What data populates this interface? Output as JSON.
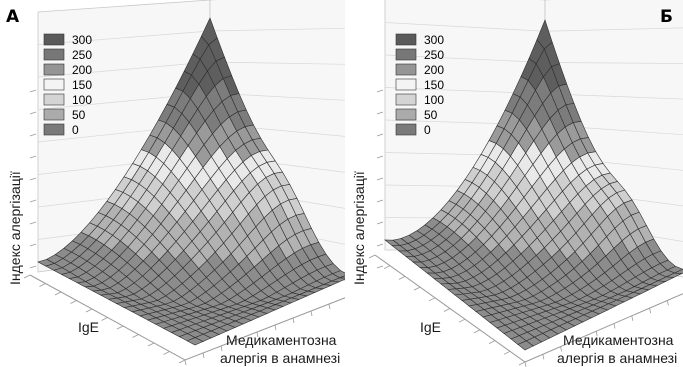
{
  "figure": {
    "panels": [
      {
        "id": "A",
        "letter": "А",
        "ylabel": "Індекс алергізації",
        "xlabel": "IgE",
        "zlabel_line1": "Медикаментозна",
        "zlabel_line2": "алергія в анамнезі",
        "legend": [
          "300",
          "250",
          "200",
          "150",
          "100",
          "50",
          "0"
        ],
        "surface_profile": "a"
      },
      {
        "id": "B",
        "letter": "Б",
        "ylabel": "Індекс алергізації",
        "xlabel": "IgE",
        "zlabel_line1": "Медикаментозна",
        "zlabel_line2": "алергія в анамнезі",
        "legend": [
          "300",
          "250",
          "200",
          "150",
          "100",
          "50",
          "0"
        ],
        "surface_profile": "b"
      }
    ],
    "legend_colors": [
      "#5a5a5a",
      "#777777",
      "#959595",
      "#f4f4f4",
      "#d4d4d4",
      "#ababab",
      "#7a7a7a"
    ]
  },
  "chart_data": [
    {
      "type": "surface3d",
      "panel": "А",
      "title": "",
      "axis_labels": {
        "z": "Індекс алергізації",
        "x": "IgE",
        "y": "Медикаментозна алергія в анамнезі"
      },
      "legend": {
        "levels": [
          300,
          250,
          200,
          150,
          100,
          50,
          0
        ],
        "placement": "top-left"
      },
      "grid": true
    },
    {
      "type": "surface3d",
      "panel": "Б",
      "title": "",
      "axis_labels": {
        "z": "Індекс алергізації",
        "x": "IgE",
        "y": "Медикаментозна алергія в анамнезі"
      },
      "legend": {
        "levels": [
          300,
          250,
          200,
          150,
          100,
          50,
          0
        ],
        "placement": "top-left"
      },
      "grid": true
    }
  ]
}
